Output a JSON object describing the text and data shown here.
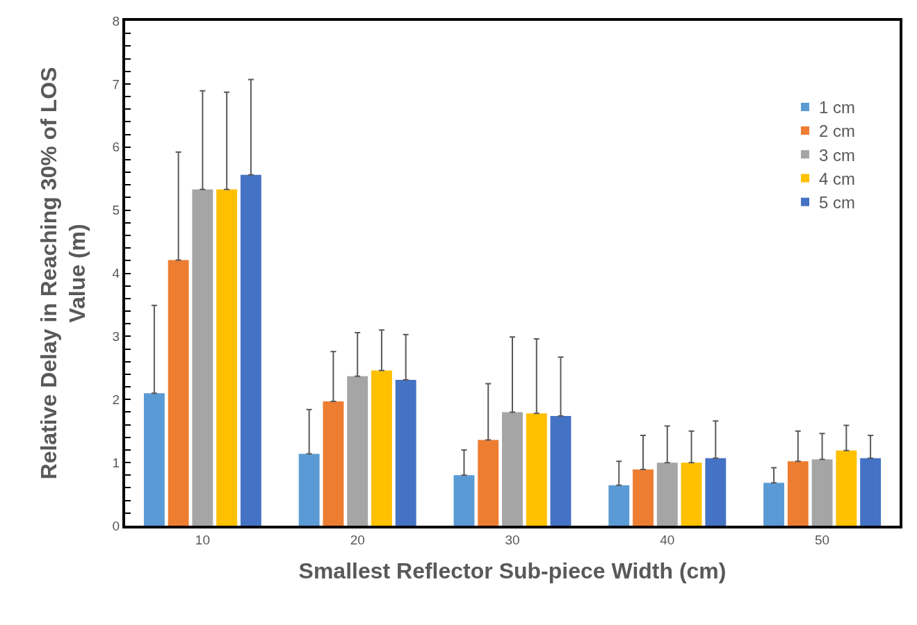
{
  "chart_data": {
    "type": "bar",
    "xlabel": "Smallest Reflector Sub-piece Width (cm)",
    "ylabel": "Relative Delay in Reaching 30% of LOS Value (m)",
    "categories": [
      "10",
      "20",
      "30",
      "40",
      "50"
    ],
    "series": [
      {
        "name": "1 cm",
        "color": "#5b9bd5",
        "values": [
          2.1,
          1.14,
          0.8,
          0.64,
          0.68
        ],
        "errors": [
          [
            2.1,
            3.49
          ],
          [
            1.14,
            1.84
          ],
          [
            0.8,
            1.2
          ],
          [
            0.64,
            1.02
          ],
          [
            0.68,
            0.92
          ]
        ]
      },
      {
        "name": "2 cm",
        "color": "#ed7d31",
        "values": [
          4.21,
          1.97,
          1.36,
          0.89,
          1.02
        ],
        "errors": [
          [
            4.21,
            5.92
          ],
          [
            1.97,
            2.76
          ],
          [
            1.36,
            2.25
          ],
          [
            0.89,
            1.43
          ],
          [
            1.02,
            1.5
          ]
        ]
      },
      {
        "name": "3 cm",
        "color": "#a5a5a5",
        "values": [
          5.33,
          2.37,
          1.8,
          1.0,
          1.05
        ],
        "errors": [
          [
            5.33,
            6.89
          ],
          [
            2.37,
            3.06
          ],
          [
            1.8,
            2.99
          ],
          [
            1.0,
            1.58
          ],
          [
            1.05,
            1.46
          ]
        ]
      },
      {
        "name": "4 cm",
        "color": "#ffc000",
        "values": [
          5.33,
          2.46,
          1.78,
          1.0,
          1.19
        ],
        "errors": [
          [
            5.33,
            6.87
          ],
          [
            2.46,
            3.1
          ],
          [
            1.78,
            2.96
          ],
          [
            1.0,
            1.5
          ],
          [
            1.19,
            1.59
          ]
        ]
      },
      {
        "name": "5 cm",
        "color": "#4472c4",
        "values": [
          5.56,
          2.31,
          1.74,
          1.07,
          1.07
        ],
        "errors": [
          [
            5.56,
            7.07
          ],
          [
            2.31,
            3.03
          ],
          [
            1.74,
            2.67
          ],
          [
            1.07,
            1.66
          ],
          [
            1.07,
            1.43
          ]
        ]
      }
    ],
    "ylim": [
      0,
      8
    ],
    "yticks": [
      0,
      {
        "value": 0.2,
        "label": null
      },
      {
        "value": 0.4,
        "label": null
      },
      {
        "value": 0.6,
        "label": null
      },
      {
        "value": 0.8,
        "label": null
      },
      1,
      {
        "value": 1.2,
        "label": null
      },
      {
        "value": 1.4,
        "label": null
      },
      {
        "value": 1.6,
        "label": null
      },
      {
        "value": 1.8,
        "label": null
      },
      2,
      {
        "value": 2.2,
        "label": null
      },
      {
        "value": 2.4,
        "label": null
      },
      {
        "value": 2.6,
        "label": null
      },
      {
        "value": 2.8,
        "label": null
      },
      3,
      {
        "value": 3.2,
        "label": null
      },
      {
        "value": 3.4,
        "label": null
      },
      {
        "value": 3.6,
        "label": null
      },
      {
        "value": 3.8,
        "label": null
      },
      4,
      {
        "value": 4.2,
        "label": null
      },
      {
        "value": 4.4,
        "label": null
      },
      {
        "value": 4.6,
        "label": null
      },
      {
        "value": 4.8,
        "label": null
      },
      5,
      {
        "value": 5.2,
        "label": null
      },
      {
        "value": 5.4,
        "label": null
      },
      {
        "value": 5.6,
        "label": null
      },
      {
        "value": 5.8,
        "label": null
      },
      6,
      {
        "value": 6.2,
        "label": null
      },
      {
        "value": 6.4,
        "label": null
      },
      {
        "value": 6.6,
        "label": null
      },
      {
        "value": 6.8,
        "label": null
      },
      7,
      {
        "value": 7.2,
        "label": null
      },
      {
        "value": 7.4,
        "label": null
      },
      {
        "value": 7.6,
        "label": null
      },
      {
        "value": 7.8,
        "label": null
      },
      8
    ],
    "grid": false,
    "legend": "top right"
  }
}
